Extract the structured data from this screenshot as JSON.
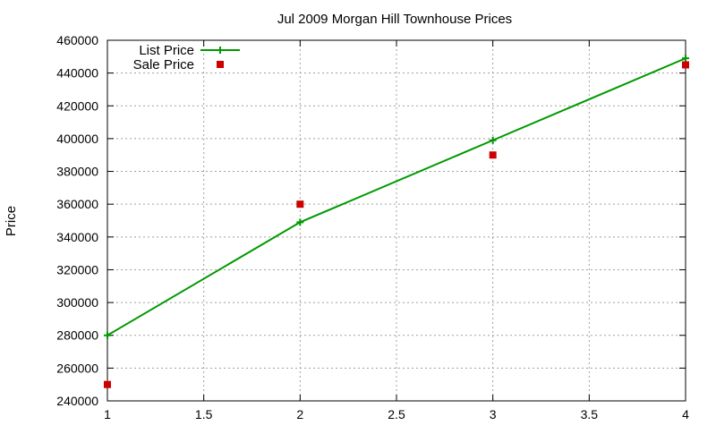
{
  "chart_data": {
    "type": "line",
    "title": "Jul 2009 Morgan Hill Townhouse Prices",
    "xlabel": "",
    "ylabel": "Price",
    "xlim": [
      1,
      4
    ],
    "ylim": [
      240000,
      460000
    ],
    "x_ticks": [
      "1",
      "1.5",
      "2",
      "2.5",
      "3",
      "3.5",
      "4"
    ],
    "x_tick_values": [
      1,
      1.5,
      2,
      2.5,
      3,
      3.5,
      4
    ],
    "y_ticks": [
      "240000",
      "260000",
      "280000",
      "300000",
      "320000",
      "340000",
      "360000",
      "380000",
      "400000",
      "420000",
      "440000",
      "460000"
    ],
    "y_tick_values": [
      240000,
      260000,
      280000,
      300000,
      320000,
      340000,
      360000,
      380000,
      400000,
      420000,
      440000,
      460000
    ],
    "grid": true,
    "legend_position": "top-left",
    "series": [
      {
        "name": "List Price",
        "style": "linespoints",
        "marker": "plus",
        "color": "#009900",
        "x": [
          1,
          2,
          3,
          4
        ],
        "y": [
          280000,
          349000,
          399000,
          449000
        ]
      },
      {
        "name": "Sale Price",
        "style": "points",
        "marker": "square",
        "color": "#cc0000",
        "x": [
          1,
          2,
          3,
          4
        ],
        "y": [
          250000,
          360000,
          390000,
          445000
        ]
      }
    ]
  }
}
